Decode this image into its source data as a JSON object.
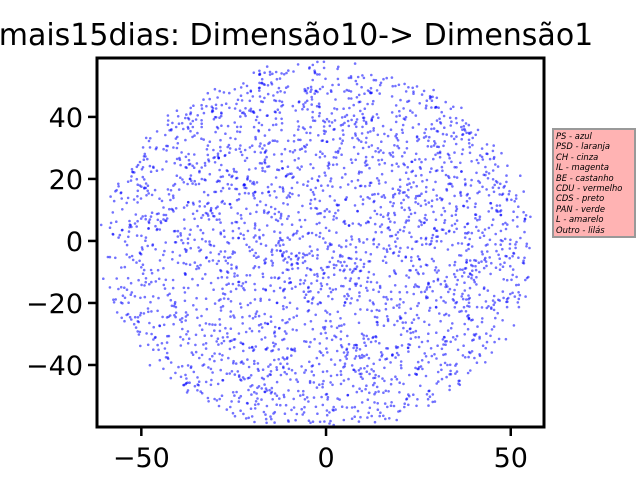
{
  "chart_data": {
    "type": "scatter",
    "title": "mais15dias: Dimensão10-> Dimensão1",
    "xlabel": "",
    "ylabel": "",
    "xlim": [
      -62,
      59
    ],
    "ylim": [
      -60,
      59
    ],
    "x_ticks": [
      -50,
      0,
      50
    ],
    "y_ticks": [
      -40,
      -20,
      0,
      20,
      40
    ],
    "x_tick_labels": [
      "−50",
      "0",
      "50"
    ],
    "y_tick_labels": [
      "−40",
      "−20",
      "0",
      "20",
      "40"
    ],
    "grid": false,
    "point_color": "#0000ff",
    "point_count_approx": 3000,
    "cloud": {
      "center": [
        -2,
        -2
      ],
      "radius_x": 58,
      "radius_y": 59,
      "shape": "roughly circular uniform point cloud"
    },
    "series": [
      {
        "color": "#0000ff"
      }
    ],
    "legend_placement": "right, outside plot",
    "legend_entries": [
      "PS - azul",
      "PSD - laranja",
      "CH - cinza",
      "IL - magenta",
      "BE - castanho",
      "CDU - vermelho",
      "CDS - preto",
      "PAN - verde",
      "L - amarelo",
      "Outro - lilás"
    ],
    "legend_background": "#ffb3b3"
  }
}
